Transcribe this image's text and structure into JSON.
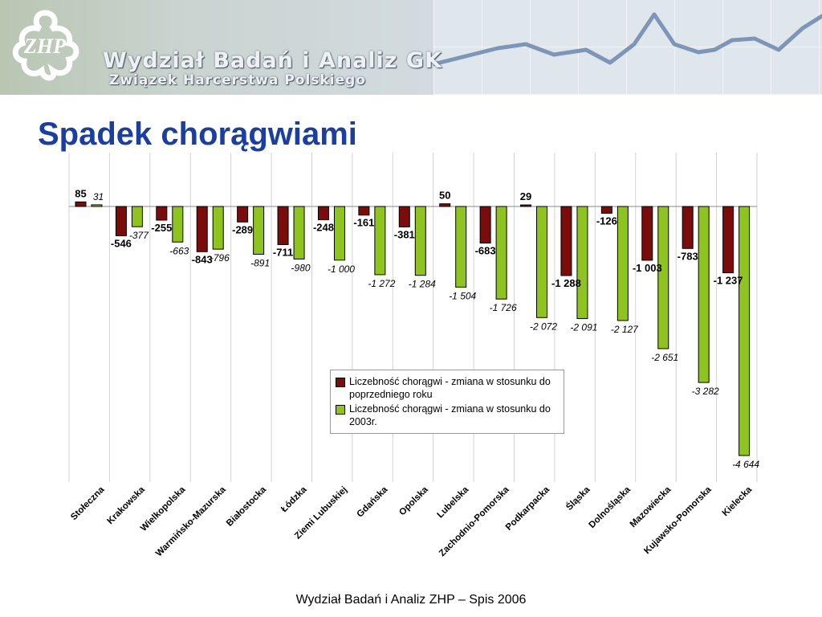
{
  "header": {
    "banner_title": "Wydział Badań i Analiz GK",
    "banner_subtitle": "Związek Harcerstwa Polskiego",
    "logo_text": "ZHP"
  },
  "page_title": "Spadek chorągwiami",
  "footer": "Wydział Badań i Analiz ZHP – Spis 2006",
  "chart_data": {
    "type": "bar",
    "title": "",
    "xlabel": "",
    "ylabel": "",
    "ylim": [
      -5100,
      300
    ],
    "grid": "vertical",
    "legend_position": "bottom-right",
    "categories": [
      "Stołeczna",
      "Krakowska",
      "Wielkopolska",
      "Warmińsko-Mazurska",
      "Białostocka",
      "Łódzka",
      "Ziemi Lubuskiej",
      "Gdańska",
      "Opolska",
      "Lubelska",
      "Zachodnio-Pomorska",
      "Podkarpacka",
      "Śląska",
      "Dolnośląska",
      "Mazowiecka",
      "Kujawsko-Pomorska",
      "Kielecka"
    ],
    "series": [
      {
        "name": "Liczebność chorągwi - zmiana w stosunku do poprzedniego roku",
        "color": "#7a0c0c",
        "values": [
          85,
          -546,
          -255,
          -843,
          -289,
          -711,
          -248,
          -161,
          -381,
          50,
          -683,
          29,
          -1288,
          -126,
          -1003,
          -783,
          -1237
        ],
        "labels": [
          "85",
          "-546",
          "-255",
          "-843",
          "-289",
          "-711",
          "-248",
          "-161",
          "-381",
          "50",
          "-683",
          "29",
          "-1 288",
          "-126",
          "-1 003",
          "-783",
          "-1 237"
        ]
      },
      {
        "name": "Liczebność chorągwi - zmiana w stosunku do 2003r.",
        "color": "#8fc31f",
        "values": [
          31,
          -377,
          -663,
          -796,
          -891,
          -980,
          -1000,
          -1272,
          -1284,
          -1504,
          -1726,
          -2072,
          -2091,
          -2127,
          -2651,
          -3282,
          -4644
        ],
        "labels": [
          "31",
          "-377",
          "-663",
          "-796",
          "-891",
          "-980",
          "-1 000",
          "-1 272",
          "-1 284",
          "-1 504",
          "-1 726",
          "-2 072",
          "-2 091",
          "-2 127",
          "-2 651",
          "-3 282",
          "-4 644"
        ]
      }
    ]
  }
}
